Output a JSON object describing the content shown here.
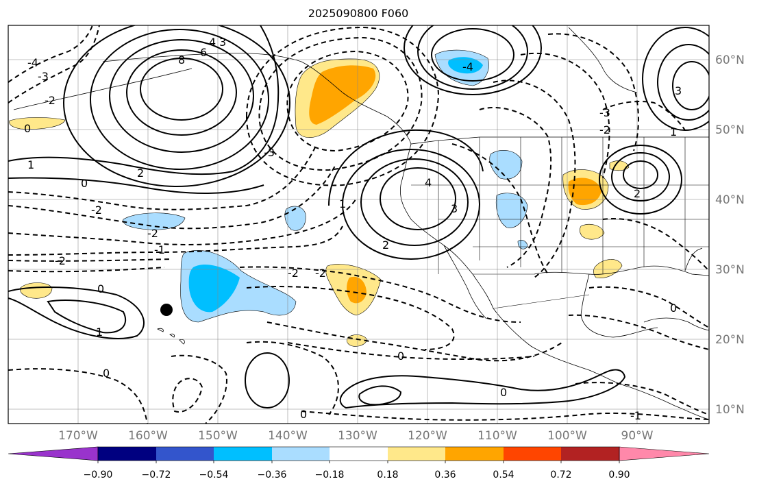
{
  "title": "2025090800 F060",
  "lat_labels": [
    "60°N",
    "50°N",
    "40°N",
    "30°N",
    "20°N",
    "10°N"
  ],
  "lon_labels": [
    "170°W",
    "160°W",
    "150°W",
    "140°W",
    "130°W",
    "120°W",
    "110°W",
    "100°W",
    "90°W"
  ],
  "colorbar": {
    "tick_labels": [
      "−0.90",
      "−0.72",
      "−0.54",
      "−0.36",
      "−0.18",
      "0.18",
      "0.36",
      "0.54",
      "0.72",
      "0.90"
    ],
    "colors": [
      "#9933cc",
      "#000080",
      "#3355cc",
      "#00bfff",
      "#aaddff",
      "#ffffff",
      "#ffe88a",
      "#ffa500",
      "#ff4500",
      "#b22222",
      "#ff88aa"
    ]
  },
  "contour_labels": [
    "8",
    "6",
    "4",
    "3",
    "2",
    "1",
    "0",
    "-1",
    "-2",
    "-3",
    "-4"
  ],
  "marker": {
    "name": "black-dot"
  }
}
